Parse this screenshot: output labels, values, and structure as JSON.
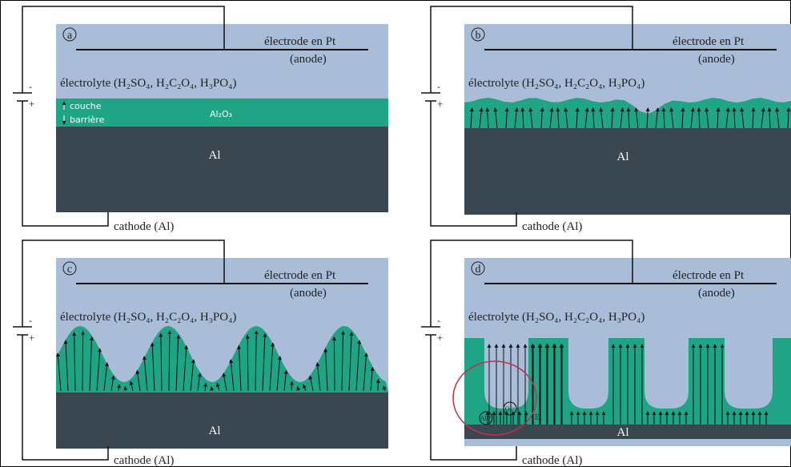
{
  "panels": [
    {
      "label": "a",
      "electrode": "électrode en Pt",
      "anode": "(anode)",
      "electrolyte": "électrolyte (H₂SO₄, H₂C₂O₄, H₃PO₄)",
      "metal": "Al",
      "cathode": "cathode (Al)",
      "minus": "-",
      "plus": "+",
      "oxide": "Al₂O₃",
      "layer": [
        "couche",
        "barrière"
      ]
    },
    {
      "label": "b",
      "electrode": "électrode en Pt",
      "anode": "(anode)",
      "electrolyte": "électrolyte (H₂SO₄, H₂C₂O₄, H₃PO₄)",
      "metal": "Al",
      "cathode": "cathode (Al)",
      "minus": "-",
      "plus": "+"
    },
    {
      "label": "c",
      "electrode": "électrode en Pt",
      "anode": "(anode)",
      "electrolyte": "électrolyte (H₂SO₄, H₂C₂O₄, H₃PO₄)",
      "metal": "Al",
      "cathode": "cathode (Al)",
      "minus": "-",
      "plus": "+"
    },
    {
      "label": "d",
      "electrode": "électrode en Pt",
      "anode": "(anode)",
      "electrolyte": "électrolyte (H₂SO₄, H₂C₂O₄, H₃PO₄)",
      "metal": "Al",
      "cathode": "cathode (Al)",
      "minus": "-",
      "plus": "+",
      "ions": [
        "Al³⁺",
        "O²⁻"
      ],
      "field": "E"
    }
  ]
}
